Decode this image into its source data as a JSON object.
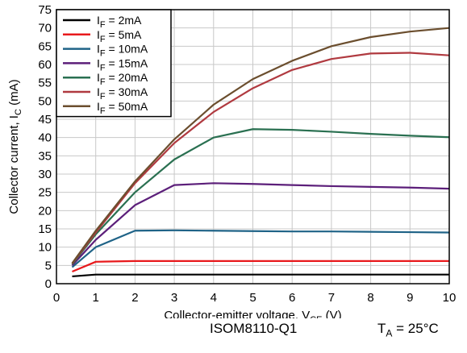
{
  "chart_data": {
    "type": "line",
    "xlabel": {
      "main": "Collector-emitter voltage, V",
      "sub": "CE",
      "tail": " (V)"
    },
    "ylabel": {
      "main": "Collector current, I",
      "sub": "C",
      "tail": " (mA)"
    },
    "xlim": [
      0,
      10
    ],
    "ylim": [
      0,
      75
    ],
    "xticks": [
      0,
      1,
      2,
      3,
      4,
      5,
      6,
      7,
      8,
      9,
      10
    ],
    "yticks": [
      0,
      5,
      10,
      15,
      20,
      25,
      30,
      35,
      40,
      45,
      50,
      55,
      60,
      65,
      70,
      75
    ],
    "grid": true,
    "legend_position": "top-left",
    "x": [
      0.4,
      1,
      2,
      3,
      4,
      5,
      6,
      7,
      8,
      9,
      10
    ],
    "series": [
      {
        "name": "2mA",
        "prefix": "I",
        "sub": "F",
        "eq": " = ",
        "color": "#000000",
        "values": [
          2.0,
          2.5,
          2.5,
          2.5,
          2.5,
          2.5,
          2.5,
          2.5,
          2.5,
          2.5,
          2.5
        ]
      },
      {
        "name": "5mA",
        "prefix": "I",
        "sub": "F",
        "eq": " = ",
        "color": "#e8191c",
        "values": [
          3.3,
          6.0,
          6.2,
          6.2,
          6.2,
          6.2,
          6.2,
          6.2,
          6.2,
          6.2,
          6.2
        ]
      },
      {
        "name": "10mA",
        "prefix": "I",
        "sub": "F",
        "eq": " = ",
        "color": "#1f6387",
        "values": [
          4.5,
          10.0,
          14.5,
          14.6,
          14.5,
          14.4,
          14.3,
          14.3,
          14.2,
          14.1,
          14.0
        ]
      },
      {
        "name": "15mA",
        "prefix": "I",
        "sub": "F",
        "eq": " = ",
        "color": "#5c1f7a",
        "values": [
          5.0,
          12.0,
          21.5,
          27.0,
          27.5,
          27.3,
          27.0,
          26.7,
          26.5,
          26.3,
          26.0
        ]
      },
      {
        "name": "20mA",
        "prefix": "I",
        "sub": "F",
        "eq": " = ",
        "color": "#2a7051",
        "values": [
          5.3,
          13.5,
          25.0,
          34.0,
          40.0,
          42.3,
          42.1,
          41.6,
          41.0,
          40.5,
          40.1
        ]
      },
      {
        "name": "30mA",
        "prefix": "I",
        "sub": "F",
        "eq": " = ",
        "color": "#b03a40",
        "values": [
          5.5,
          14.0,
          27.5,
          38.5,
          47.0,
          53.5,
          58.5,
          61.5,
          63.0,
          63.2,
          62.5
        ]
      },
      {
        "name": "50mA",
        "prefix": "I",
        "sub": "F",
        "eq": " = ",
        "color": "#6b4e2e",
        "values": [
          5.6,
          14.5,
          28.0,
          39.5,
          49.0,
          56.0,
          61.0,
          65.0,
          67.5,
          69.0,
          70.0
        ]
      }
    ]
  },
  "footer": {
    "device": "ISOM8110-Q1",
    "temp_prefix": "T",
    "temp_sub": "A",
    "temp_value": " = 25°C"
  }
}
